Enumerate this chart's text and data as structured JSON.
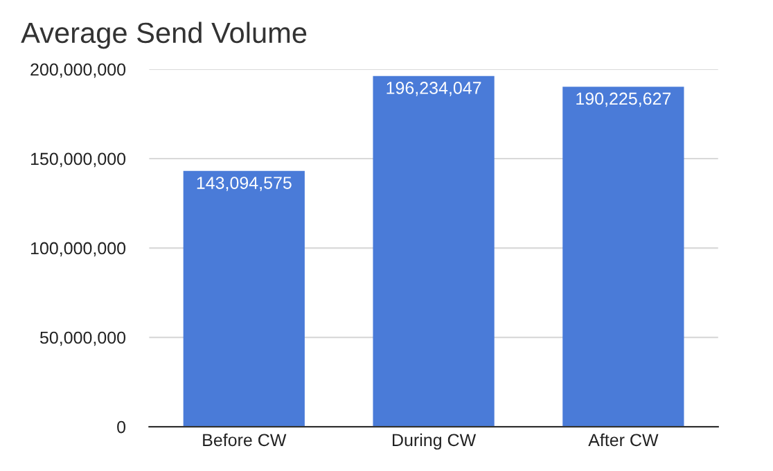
{
  "chart_data": {
    "type": "bar",
    "title": "Average Send Volume",
    "categories": [
      "Before CW",
      "During CW",
      "After CW"
    ],
    "values": [
      143094575,
      196234047,
      190225627
    ],
    "value_labels": [
      "143,094,575",
      "196,234,047",
      "190,225,627"
    ],
    "color": "#4a7bd8",
    "ylim": [
      0,
      200000000
    ],
    "yticks": [
      {
        "value": 0,
        "label": "0"
      },
      {
        "value": 50000000,
        "label": "50,000,000"
      },
      {
        "value": 100000000,
        "label": "100,000,000"
      },
      {
        "value": 150000000,
        "label": "150,000,000"
      },
      {
        "value": 200000000,
        "label": "200,000,000"
      }
    ],
    "grid": "y",
    "legend": false
  }
}
